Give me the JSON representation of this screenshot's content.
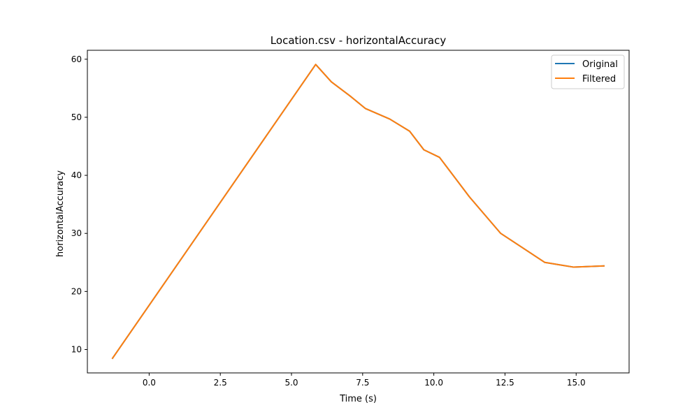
{
  "chart_data": {
    "type": "line",
    "title": "Location.csv - horizontalAccuracy",
    "xlabel": "Time (s)",
    "ylabel": "horizontalAccuracy",
    "xlim": [
      -2.17,
      16.86
    ],
    "ylim": [
      5.97,
      61.54
    ],
    "xticks": [
      0.0,
      2.5,
      5.0,
      7.5,
      10.0,
      12.5,
      15.0
    ],
    "xtick_labels": [
      "0.0",
      "2.5",
      "5.0",
      "7.5",
      "10.0",
      "12.5",
      "15.0"
    ],
    "yticks": [
      10,
      20,
      30,
      40,
      50,
      60
    ],
    "ytick_labels": [
      "10",
      "20",
      "30",
      "40",
      "50",
      "60"
    ],
    "grid": false,
    "legend_position": "top-right",
    "series": [
      {
        "name": "Original",
        "color": "#1f77b4",
        "x": [
          -1.3,
          5.85,
          6.4,
          7.05,
          7.6,
          8.45,
          9.15,
          9.65,
          10.2,
          11.25,
          12.35,
          13.9,
          14.9,
          16.0
        ],
        "y": [
          8.4,
          59.1,
          56.1,
          53.7,
          51.5,
          49.7,
          47.6,
          44.4,
          43.1,
          36.3,
          30.0,
          25.0,
          24.2,
          24.4
        ]
      },
      {
        "name": "Filtered",
        "color": "#ff7f0e",
        "x": [
          -1.3,
          5.85,
          6.4,
          7.05,
          7.6,
          8.45,
          9.15,
          9.65,
          10.2,
          11.25,
          12.35,
          13.9,
          14.9,
          16.0
        ],
        "y": [
          8.4,
          59.1,
          56.1,
          53.7,
          51.5,
          49.7,
          47.6,
          44.4,
          43.1,
          36.3,
          30.0,
          25.0,
          24.2,
          24.4
        ]
      }
    ]
  }
}
